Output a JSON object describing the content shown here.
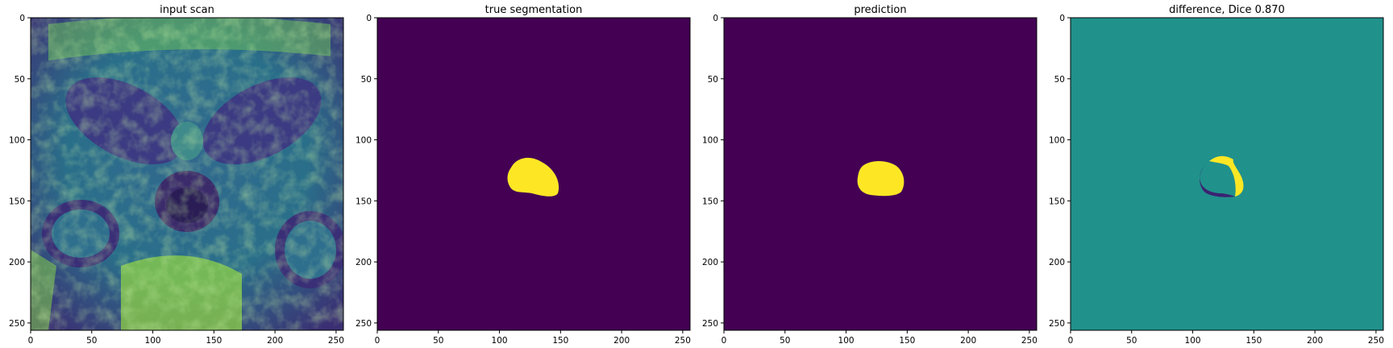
{
  "panels": [
    {
      "title": "input scan",
      "kind": "mri",
      "x_ticks": [
        "0",
        "50",
        "100",
        "150",
        "200",
        "250"
      ],
      "y_ticks": [
        "0",
        "50",
        "100",
        "150",
        "200",
        "250"
      ]
    },
    {
      "title": "true segmentation",
      "kind": "mask-true",
      "x_ticks": [
        "0",
        "50",
        "100",
        "150",
        "200",
        "250"
      ],
      "y_ticks": [
        "0",
        "50",
        "100",
        "150",
        "200",
        "250"
      ]
    },
    {
      "title": "prediction",
      "kind": "mask-pred",
      "x_ticks": [
        "0",
        "50",
        "100",
        "150",
        "200",
        "250"
      ],
      "y_ticks": [
        "0",
        "50",
        "100",
        "150",
        "200",
        "250"
      ]
    },
    {
      "title": "difference, Dice 0.870",
      "kind": "difference",
      "x_ticks": [
        "0",
        "50",
        "100",
        "150",
        "200",
        "250"
      ],
      "y_ticks": [
        "0",
        "50",
        "100",
        "150",
        "200",
        "250"
      ]
    }
  ],
  "image_size": 256,
  "colormap": {
    "low": "#440154",
    "mid": "#21918c",
    "high": "#fde725",
    "scan_dark": "#3b2f73",
    "scan_mid": "#2c7f8f",
    "scan_bright": "#8fd146"
  }
}
